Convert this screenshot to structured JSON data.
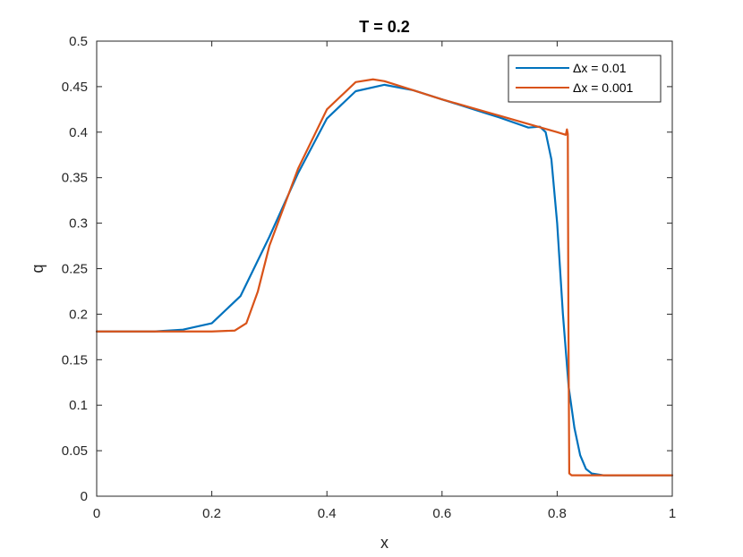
{
  "chart_data": {
    "type": "line",
    "title": "T = 0.2",
    "xlabel": "x",
    "ylabel": "q",
    "xlim": [
      0,
      1
    ],
    "ylim": [
      0,
      0.5
    ],
    "xticks": [
      "0",
      "0.2",
      "0.4",
      "0.6",
      "0.8",
      "1"
    ],
    "yticks": [
      "0",
      "0.05",
      "0.1",
      "0.15",
      "0.2",
      "0.25",
      "0.3",
      "0.35",
      "0.4",
      "0.45",
      "0.5"
    ],
    "grid": false,
    "legend_position": "top-right",
    "series": [
      {
        "name": "Δx = 0.01",
        "color": "#0072BD",
        "x": [
          0,
          0.1,
          0.15,
          0.2,
          0.25,
          0.3,
          0.35,
          0.4,
          0.45,
          0.5,
          0.55,
          0.6,
          0.65,
          0.7,
          0.75,
          0.77,
          0.78,
          0.79,
          0.8,
          0.81,
          0.82,
          0.83,
          0.84,
          0.85,
          0.86,
          0.88,
          0.9,
          1
        ],
        "y": [
          0.181,
          0.181,
          0.183,
          0.19,
          0.22,
          0.285,
          0.355,
          0.415,
          0.445,
          0.452,
          0.446,
          0.436,
          0.426,
          0.416,
          0.405,
          0.406,
          0.4,
          0.37,
          0.3,
          0.2,
          0.12,
          0.075,
          0.045,
          0.03,
          0.025,
          0.023,
          0.023,
          0.023
        ]
      },
      {
        "name": "Δx = 0.001",
        "color": "#D95319",
        "x": [
          0,
          0.2,
          0.24,
          0.26,
          0.28,
          0.3,
          0.35,
          0.4,
          0.45,
          0.48,
          0.5,
          0.55,
          0.6,
          0.65,
          0.7,
          0.75,
          0.8,
          0.815,
          0.817,
          0.8185,
          0.8195,
          0.821,
          0.825,
          0.83,
          0.9,
          1
        ],
        "y": [
          0.181,
          0.181,
          0.182,
          0.19,
          0.225,
          0.275,
          0.36,
          0.425,
          0.455,
          0.458,
          0.456,
          0.446,
          0.436,
          0.427,
          0.418,
          0.409,
          0.4,
          0.397,
          0.403,
          0.398,
          0.2,
          0.025,
          0.023,
          0.023,
          0.023,
          0.023
        ]
      }
    ]
  }
}
